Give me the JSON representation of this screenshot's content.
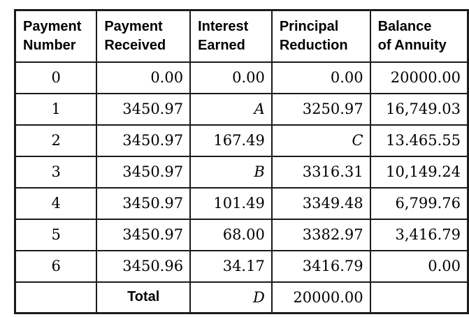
{
  "table": {
    "name": "annuity-amortization-table",
    "columns": [
      {
        "id": "payment-number",
        "line1": "Payment",
        "line2": "Number"
      },
      {
        "id": "payment-received",
        "line1": "Payment",
        "line2": "Received"
      },
      {
        "id": "interest-earned",
        "line1": "Interest",
        "line2": "Earned"
      },
      {
        "id": "principal-reduction",
        "line1": "Principal",
        "line2": "Reduction"
      },
      {
        "id": "balance-of-annuity",
        "line1": "Balance",
        "line2": "of Annuity"
      }
    ],
    "rows": [
      {
        "cells": [
          {
            "t": "0"
          },
          {
            "t": "0.00"
          },
          {
            "t": "0.00"
          },
          {
            "t": "0.00"
          },
          {
            "t": "20000.00"
          }
        ]
      },
      {
        "cells": [
          {
            "t": "1"
          },
          {
            "t": "3450.97"
          },
          {
            "t": "A",
            "italic": true
          },
          {
            "t": "3250.97"
          },
          {
            "t": "16,749.03"
          }
        ]
      },
      {
        "cells": [
          {
            "t": "2"
          },
          {
            "t": "3450.97"
          },
          {
            "t": "167.49"
          },
          {
            "t": "C",
            "italic": true
          },
          {
            "t": "13.465.55"
          }
        ]
      },
      {
        "cells": [
          {
            "t": "3"
          },
          {
            "t": "3450.97"
          },
          {
            "t": "B",
            "italic": true
          },
          {
            "t": "3316.31"
          },
          {
            "t": "10,149.24"
          }
        ]
      },
      {
        "cells": [
          {
            "t": "4"
          },
          {
            "t": "3450.97"
          },
          {
            "t": "101.49"
          },
          {
            "t": "3349.48"
          },
          {
            "t": "6,799.76"
          }
        ]
      },
      {
        "cells": [
          {
            "t": "5"
          },
          {
            "t": "3450.97"
          },
          {
            "t": "68.00"
          },
          {
            "t": "3382.97"
          },
          {
            "t": "3,416.79"
          }
        ]
      },
      {
        "cells": [
          {
            "t": "6"
          },
          {
            "t": "3450.96"
          },
          {
            "t": "34.17"
          },
          {
            "t": "3416.79"
          },
          {
            "t": "0.00"
          }
        ]
      },
      {
        "cells": [
          {
            "t": ""
          },
          {
            "t": "Total",
            "bold": true
          },
          {
            "t": "D",
            "italic": true
          },
          {
            "t": "20000.00"
          },
          {
            "t": ""
          }
        ]
      }
    ],
    "colors": {
      "border": "#1b1b1b",
      "text": "#000000",
      "background": "#ffffff"
    }
  }
}
